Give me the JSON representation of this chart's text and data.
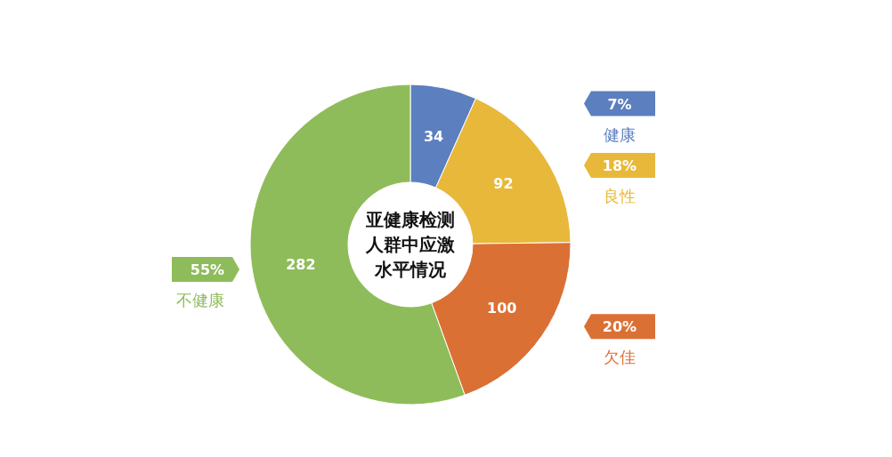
{
  "chart_data": {
    "type": "donut",
    "title": "亚健康检测人群中应激水平情况",
    "categories": [
      "健康",
      "良性",
      "欠佳",
      "不健康"
    ],
    "values": [
      34,
      92,
      100,
      282
    ],
    "colors": [
      "#5b7fbf",
      "#e8b83a",
      "#db7035",
      "#8fbc5a"
    ],
    "data_labels": true,
    "legend": "right",
    "annotations": [
      "7%",
      "18%",
      "20%",
      "55%"
    ]
  }
}
